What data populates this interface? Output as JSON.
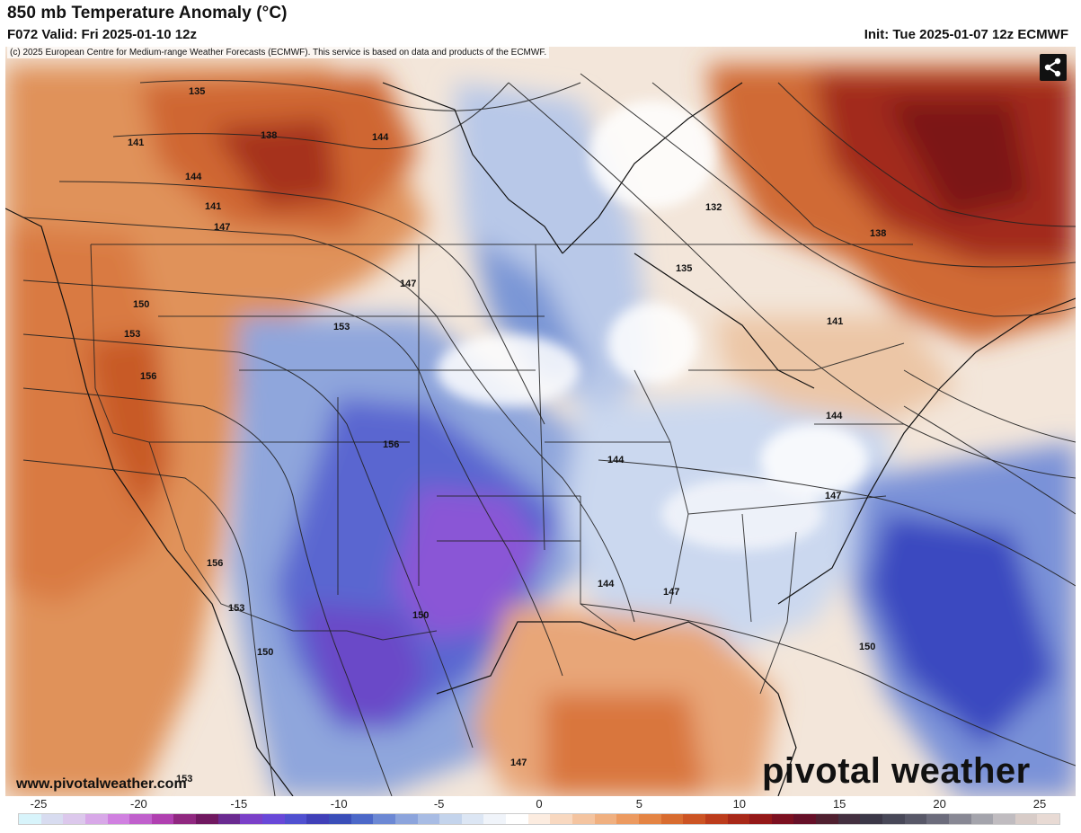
{
  "header": {
    "title": "850 mb Temperature Anomaly (°C)",
    "valid": "F072 Valid: Fri 2025-01-10 12z",
    "init": "Init: Tue 2025-01-07 12z ECMWF"
  },
  "copyright": "(c) 2025 European Centre for Medium-range Weather Forecasts (ECMWF). This service is based on data and products of the ECMWF.",
  "share_icon": "share-icon",
  "website": "www.pivotalweather.com",
  "logo": "pivotal weather",
  "contours": [
    "135",
    "138",
    "141",
    "144",
    "147",
    "150",
    "153",
    "156",
    "132",
    "135",
    "138",
    "141",
    "144",
    "147",
    "150",
    "153",
    "156",
    "144",
    "147",
    "150",
    "144",
    "147",
    "150",
    "153",
    "156",
    "141",
    "144",
    "147",
    "153"
  ],
  "legend": {
    "ticks": [
      "-25",
      "-20",
      "-15",
      "-10",
      "-5",
      "0",
      "5",
      "10",
      "15",
      "20",
      "25"
    ],
    "colors": [
      "#d8f4fb",
      "#d8dcf0",
      "#dcc8ec",
      "#d8a8e8",
      "#d080e0",
      "#c060cc",
      "#b040b0",
      "#902880",
      "#701860",
      "#6a2a90",
      "#7a40c8",
      "#6848d8",
      "#5050d0",
      "#4040b8",
      "#3a4eb8",
      "#4c68c8",
      "#6c88d4",
      "#8ca4dc",
      "#a8bce4",
      "#c4d4ec",
      "#dce6f4",
      "#f0f4fa",
      "#ffffff",
      "#fcece0",
      "#f8d8c0",
      "#f4c4a0",
      "#f0b080",
      "#ec9a60",
      "#e48444",
      "#d86c30",
      "#cc5424",
      "#bc3c1c",
      "#a82818",
      "#941818",
      "#7c1020",
      "#661028",
      "#502030",
      "#443040",
      "#3c3848",
      "#484858",
      "#585868",
      "#6c6c7c",
      "#888894",
      "#a4a4ac",
      "#c0bcc0",
      "#d8ccc8",
      "#e8dad4"
    ]
  }
}
